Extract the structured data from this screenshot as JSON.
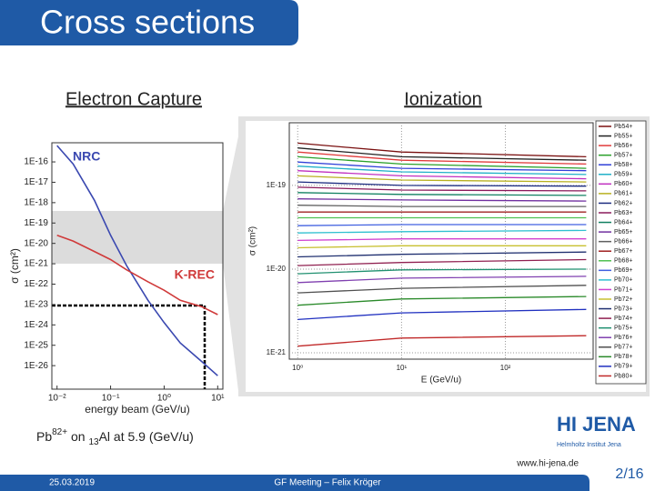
{
  "title": "Cross sections",
  "headings": [
    "Electron Capture",
    "Ionization"
  ],
  "caption": [
    "Pb",
    "82+",
    " on ",
    "13",
    "Al at 5.9 (GeV/u)"
  ],
  "logo": {
    "name": "HI JENA",
    "sub": "Helmholtz Institut Jena"
  },
  "website": "www.hi-jena.de",
  "footer": {
    "date": "25.03.2019",
    "event": "GF Meeting – Felix Kröger",
    "page": "2/16"
  },
  "chart_data": [
    {
      "type": "line",
      "xlabel": "energy beam (GeV/u)",
      "ylabel": "σ (cm²)",
      "log_x": true,
      "log_y": true,
      "grid": false,
      "xlim": [
        0.008,
        12.5
      ],
      "ylim": [
        7e-28,
        8.7e-16
      ],
      "xticks": [
        {
          "value": 0.01,
          "label": "10⁻²"
        },
        {
          "value": 0.1,
          "label": "10⁻¹"
        },
        {
          "value": 1,
          "label": "10⁰"
        },
        {
          "value": 10,
          "label": "10¹"
        }
      ],
      "yticks": [
        {
          "value": 1e-16,
          "label": "1E-16"
        },
        {
          "value": 1e-17,
          "label": "1E-17"
        },
        {
          "value": 1e-18,
          "label": "1E-18"
        },
        {
          "value": 1e-19,
          "label": "1E-19"
        },
        {
          "value": 1e-20,
          "label": "1E-20"
        },
        {
          "value": 1e-21,
          "label": "1E-21"
        },
        {
          "value": 1e-22,
          "label": "1E-22"
        },
        {
          "value": 1e-23,
          "label": "1E-23"
        },
        {
          "value": 1e-24,
          "label": "1E-24"
        },
        {
          "value": 1e-25,
          "label": "1E-25"
        },
        {
          "value": 1e-26,
          "label": "1E-26"
        }
      ],
      "x": [
        0.01,
        0.02,
        0.05,
        0.1,
        0.2,
        0.5,
        1,
        2,
        5,
        10
      ],
      "series": [
        {
          "name": "NRC",
          "color": "#3a48b0",
          "values": [
            6.3e-16,
            7.9e-17,
            1.3e-18,
            2.5e-20,
            7.9e-22,
            1.6e-23,
            1.3e-24,
            1.3e-25,
            1.6e-26,
            3.2e-27
          ]
        },
        {
          "name": "K-REC",
          "color": "#d03a3a",
          "values": [
            2.5e-20,
            1.3e-20,
            4e-21,
            1.6e-21,
            5e-22,
            1.3e-22,
            5e-23,
            1.6e-23,
            7.9e-24,
            3.2e-24
          ]
        }
      ]
    },
    {
      "type": "line",
      "xlabel": "E (GeV/u)",
      "ylabel": "σ (cm²)",
      "log_x": true,
      "log_y": true,
      "grid": true,
      "legend": "right",
      "xlim": [
        0.83,
        700
      ],
      "ylim": [
        8.4e-22,
        5.6e-19
      ],
      "xticks": [
        {
          "value": 1,
          "label": "10⁰"
        },
        {
          "value": 10,
          "label": "10¹"
        },
        {
          "value": 100,
          "label": "10²"
        }
      ],
      "yticks": [
        {
          "value": 1e-19,
          "label": "1E-19"
        },
        {
          "value": 1e-20,
          "label": "1E-20"
        },
        {
          "value": 1e-21,
          "label": "1E-21"
        }
      ],
      "x": [
        1,
        10,
        600
      ],
      "series": [
        {
          "name": "Pb54+",
          "color": "#7a1010",
          "values": [
            3.2e-19,
            2.5e-19,
            2.2e-19
          ]
        },
        {
          "name": "Pb55+",
          "color": "#222222",
          "values": [
            2.8e-19,
            2.2e-19,
            2e-19
          ]
        },
        {
          "name": "Pb56+",
          "color": "#e03a3a",
          "values": [
            2.5e-19,
            2e-19,
            1.8e-19
          ]
        },
        {
          "name": "Pb57+",
          "color": "#2aa02a",
          "values": [
            2.2e-19,
            1.8e-19,
            1.6e-19
          ]
        },
        {
          "name": "Pb58+",
          "color": "#3040d8",
          "values": [
            1.9e-19,
            1.6e-19,
            1.5e-19
          ]
        },
        {
          "name": "Pb59+",
          "color": "#20b0c8",
          "values": [
            1.7e-19,
            1.45e-19,
            1.35e-19
          ]
        },
        {
          "name": "Pb60+",
          "color": "#c030c0",
          "values": [
            1.5e-19,
            1.3e-19,
            1.2e-19
          ]
        },
        {
          "name": "Pb61+",
          "color": "#b8b020",
          "values": [
            1.3e-19,
            1.16e-19,
            1.1e-19
          ]
        },
        {
          "name": "Pb62+",
          "color": "#1c2c80",
          "values": [
            1.1e-19,
            1e-19,
            9.8e-20
          ]
        },
        {
          "name": "Pb63+",
          "color": "#8a1a5a",
          "values": [
            9.5e-20,
            8.8e-20,
            8.6e-20
          ]
        },
        {
          "name": "Pb64+",
          "color": "#108060",
          "values": [
            8.2e-20,
            7.8e-20,
            7.6e-20
          ]
        },
        {
          "name": "Pb65+",
          "color": "#7030a0",
          "values": [
            6.9e-20,
            6.7e-20,
            6.5e-20
          ]
        },
        {
          "name": "Pb66+",
          "color": "#606060",
          "values": [
            5.8e-20,
            5.6e-20,
            5.6e-20
          ]
        },
        {
          "name": "Pb67+",
          "color": "#a02020",
          "values": [
            4.8e-20,
            4.8e-20,
            4.8e-20
          ]
        },
        {
          "name": "Pb68+",
          "color": "#50c050",
          "values": [
            4.1e-20,
            4.1e-20,
            4.1e-20
          ]
        },
        {
          "name": "Pb69+",
          "color": "#4060e0",
          "values": [
            3.3e-20,
            3.4e-20,
            3.4e-20
          ]
        },
        {
          "name": "Pb70+",
          "color": "#30c0d0",
          "values": [
            2.7e-20,
            2.8e-20,
            2.9e-20
          ]
        },
        {
          "name": "Pb71+",
          "color": "#d040d0",
          "values": [
            2.2e-20,
            2.3e-20,
            2.3e-20
          ]
        },
        {
          "name": "Pb72+",
          "color": "#c8c030",
          "values": [
            1.8e-20,
            1.9e-20,
            1.9e-20
          ]
        },
        {
          "name": "Pb73+",
          "color": "#203070",
          "values": [
            1.4e-20,
            1.5e-20,
            1.6e-20
          ]
        },
        {
          "name": "Pb74+",
          "color": "#902050",
          "values": [
            1.1e-20,
            1.2e-20,
            1.3e-20
          ]
        },
        {
          "name": "Pb75+",
          "color": "#209070",
          "values": [
            8.8e-21,
            9.8e-21,
            1e-20
          ]
        },
        {
          "name": "Pb76+",
          "color": "#8040b0",
          "values": [
            6.9e-21,
            7.8e-21,
            8.2e-21
          ]
        },
        {
          "name": "Pb77+",
          "color": "#505050",
          "values": [
            5.2e-21,
            5.9e-21,
            6.4e-21
          ]
        },
        {
          "name": "Pb78+",
          "color": "#2a8a2a",
          "values": [
            3.7e-21,
            4.4e-21,
            4.7e-21
          ]
        },
        {
          "name": "Pb79+",
          "color": "#2030c0",
          "values": [
            2.5e-21,
            3e-21,
            3.3e-21
          ]
        },
        {
          "name": "Pb80+",
          "color": "#c02828",
          "values": [
            1.2e-21,
            1.5e-21,
            1.6e-21
          ]
        }
      ]
    }
  ]
}
